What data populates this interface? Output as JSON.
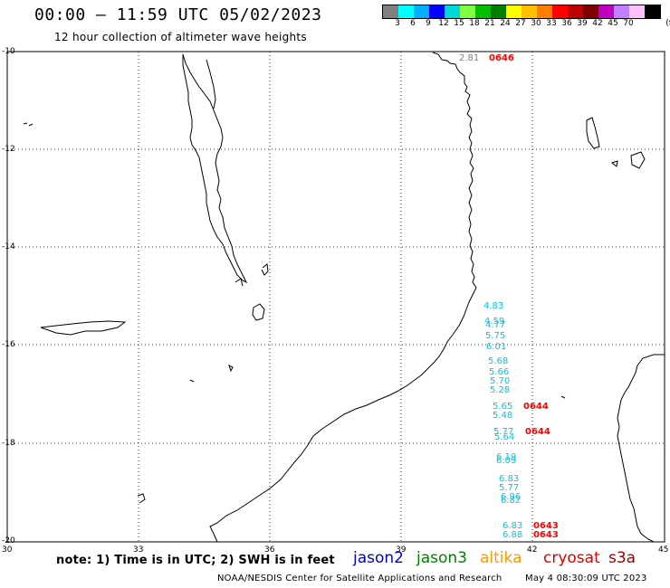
{
  "title": "00:00 – 11:59 UTC 05/02/2023",
  "subtitle": "12 hour collection of altimeter wave heights",
  "colorbar": {
    "colors": [
      "#808080",
      "#00ffff",
      "#00b0ff",
      "#0000ff",
      "#00d8d8",
      "#80ff40",
      "#00c000",
      "#008000",
      "#ffff00",
      "#ffc000",
      "#ff8000",
      "#ff0000",
      "#c00000",
      "#800000",
      "#c000c0",
      "#c080ff",
      "#ffc0ff",
      "#000000"
    ],
    "labels": [
      "3",
      "6",
      "9",
      "12",
      "15",
      "18",
      "21",
      "24",
      "27",
      "30",
      "33",
      "36",
      "39",
      "42",
      "45",
      "70",
      "(ft)"
    ]
  },
  "axes": {
    "x_ticks": [
      "30",
      "33",
      "36",
      "39",
      "42",
      "45"
    ],
    "y_ticks": [
      "-10",
      "-12",
      "-14",
      "-16",
      "-18",
      "-20"
    ]
  },
  "waves": [
    {
      "text": "2.81",
      "color": "#808080"
    },
    {
      "text": "0646",
      "color": "#ff0000"
    },
    {
      "text": "4.83",
      "color": "#00c8e8"
    },
    {
      "text": "4.59",
      "color": "#00c8e8"
    },
    {
      "text": "4.77",
      "color": "#00c8e8"
    },
    {
      "text": "5.75",
      "color": "#00c8e8"
    },
    {
      "text": "6.01",
      "color": "#00c8e8"
    },
    {
      "text": "5.68",
      "color": "#00c8e8"
    },
    {
      "text": "5.66",
      "color": "#00c8e8"
    },
    {
      "text": "5.70",
      "color": "#00c8e8"
    },
    {
      "text": "5.28",
      "color": "#00c8e8"
    },
    {
      "text": "5.65",
      "color": "#00c8e8"
    },
    {
      "text": "5.48",
      "color": "#00c8e8"
    },
    {
      "text": "0644",
      "color": "#ff0000"
    },
    {
      "text": "5.77",
      "color": "#00c8e8"
    },
    {
      "text": "5.64",
      "color": "#00c8e8"
    },
    {
      "text": "0644",
      "color": "#ff0000"
    },
    {
      "text": "6.19",
      "color": "#00c8e8"
    },
    {
      "text": "6.09",
      "color": "#00c8e8"
    },
    {
      "text": "6.83",
      "color": "#00c8e8"
    },
    {
      "text": "5.77",
      "color": "#00c8e8"
    },
    {
      "text": "6.96",
      "color": "#00c8e8"
    },
    {
      "text": "6.82",
      "color": "#00c8e8"
    },
    {
      "text": "6.83",
      "color": "#00c8e8"
    },
    {
      "text": "0643",
      "color": "#ff0000"
    },
    {
      "text": "6.88",
      "color": "#00c8e8"
    },
    {
      "text": "0643",
      "color": "#ff0000"
    }
  ],
  "note": "note: 1) Time is in UTC; 2) SWH is in feet",
  "legend": [
    {
      "label": "jason2",
      "color": "#0000cc"
    },
    {
      "label": "jason3",
      "color": "#008000"
    },
    {
      "label": "altika",
      "color": "#ff9900"
    },
    {
      "label": "cryosat",
      "color": "#dd0000"
    },
    {
      "label": "s3a",
      "color": "#990000"
    }
  ],
  "footer": {
    "credit": "NOAA/NESDIS Center for Satellite Applications and Research",
    "timestamp": "May  4 08:30:09 UTC 2023"
  }
}
